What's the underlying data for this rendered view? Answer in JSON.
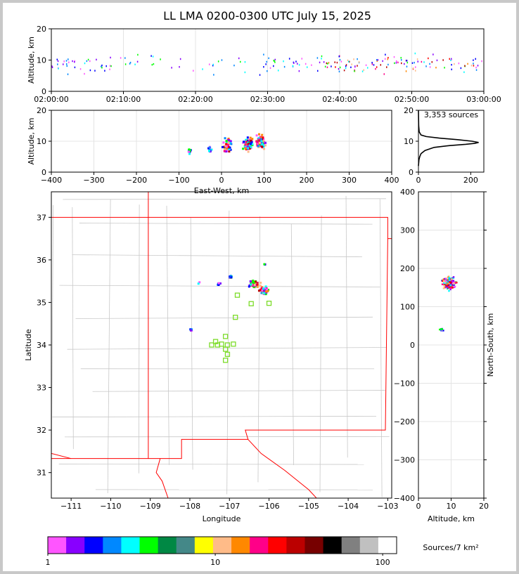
{
  "title": "LL LMA 0200-0300 UTC July 15, 2025",
  "colors": {
    "background": "#ffffff",
    "frame_border": "#c8c8c8",
    "state_border": "#ff0000",
    "county_border": "#c8c8c8",
    "station_marker": "#7ddc2a",
    "histogram_line": "#000000"
  },
  "chart_data": [
    {
      "id": "time-altitude",
      "type": "scatter",
      "xlabel": "",
      "ylabel": "Altitude, km",
      "xlim": [
        "02:00:00",
        "03:00:00"
      ],
      "ylim": [
        0,
        20
      ],
      "x_ticks": [
        "02:00:00",
        "02:10:00",
        "02:20:00",
        "02:30:00",
        "02:40:00",
        "02:50:00",
        "03:00:00"
      ],
      "y_ticks": [
        0,
        10,
        20
      ],
      "grid": true
    },
    {
      "id": "eastwest-altitude",
      "type": "scatter",
      "xlabel": "East-West, km",
      "ylabel": "Altitude, km",
      "xlim": [
        -400,
        400
      ],
      "ylim": [
        0,
        20
      ],
      "x_ticks": [
        -400,
        -300,
        -200,
        -100,
        0,
        100,
        200,
        300,
        400
      ],
      "y_ticks": [
        0,
        10,
        20
      ],
      "grid": true,
      "clusters": [
        {
          "x": -78,
          "y": 7,
          "count": 14
        },
        {
          "x": -30,
          "y": 7.5,
          "count": 12
        },
        {
          "x": 12,
          "y": 9,
          "count": 60
        },
        {
          "x": 60,
          "y": 9.5,
          "count": 90
        },
        {
          "x": 90,
          "y": 10,
          "count": 90
        }
      ]
    },
    {
      "id": "altitude-histogram",
      "type": "line",
      "annotation": "3,353 sources",
      "xlim": [
        0,
        250
      ],
      "ylim": [
        0,
        20
      ],
      "x_ticks": [
        0,
        200
      ],
      "y_ticks": [
        0,
        10,
        20
      ],
      "x": [
        0,
        2,
        5,
        10,
        25,
        60,
        120,
        180,
        215,
        230,
        205,
        150,
        80,
        30,
        10,
        3,
        1,
        0
      ],
      "y": [
        2,
        4,
        5,
        6,
        7,
        8,
        8.6,
        9,
        9.3,
        9.6,
        10,
        10.5,
        11,
        11.5,
        12,
        13,
        15,
        20
      ]
    },
    {
      "id": "plan-view",
      "type": "scatter",
      "xlabel": "Longitude",
      "ylabel": "Latitude",
      "xlim": [
        -111.5,
        -102.9
      ],
      "ylim": [
        30.4,
        37.6
      ],
      "x_ticks": [
        -111,
        -110,
        -109,
        -108,
        -107,
        -106,
        -105,
        -104,
        -103
      ],
      "y_ticks": [
        31,
        32,
        33,
        34,
        35,
        36,
        37
      ],
      "stations": [
        [
          -106.8,
          35.17
        ],
        [
          -106.45,
          34.97
        ],
        [
          -106.0,
          34.98
        ],
        [
          -106.85,
          34.65
        ],
        [
          -107.1,
          34.2
        ],
        [
          -107.35,
          34.08
        ],
        [
          -107.45,
          34.0
        ],
        [
          -107.3,
          34.0
        ],
        [
          -107.2,
          34.02
        ],
        [
          -107.05,
          34.0
        ],
        [
          -106.9,
          34.02
        ],
        [
          -107.1,
          33.9
        ],
        [
          -107.05,
          33.78
        ],
        [
          -107.1,
          33.64
        ]
      ],
      "clusters": [
        {
          "lon": -106.4,
          "lat": 35.45,
          "count": 90
        },
        {
          "lon": -106.15,
          "lat": 35.3,
          "count": 60
        },
        {
          "lon": -107.0,
          "lat": 35.62,
          "count": 30
        },
        {
          "lon": -107.3,
          "lat": 35.45,
          "count": 10
        },
        {
          "lon": -106.15,
          "lat": 35.92,
          "count": 3
        },
        {
          "lon": -107.8,
          "lat": 35.48,
          "count": 2
        },
        {
          "lon": -108.0,
          "lat": 34.38,
          "count": 8
        }
      ]
    },
    {
      "id": "altitude-northsouth",
      "type": "scatter",
      "xlabel": "Altitude, km",
      "ylabel": "North-South, km",
      "xlim": [
        0,
        20
      ],
      "ylim": [
        -400,
        400
      ],
      "x_ticks": [
        0,
        10,
        20
      ],
      "y_ticks": [
        -400,
        -300,
        -200,
        -100,
        0,
        100,
        200,
        300,
        400
      ],
      "clusters": [
        {
          "x": 9,
          "y": 165,
          "count": 140
        },
        {
          "x": 7,
          "y": 42,
          "count": 10
        }
      ]
    }
  ],
  "colorbar": {
    "label": "Sources/7 km²",
    "tick_labels": [
      "1",
      "10",
      "100"
    ],
    "colors": [
      "#ff55ff",
      "#8800ff",
      "#0000ff",
      "#0088ff",
      "#00ffff",
      "#00ff00",
      "#008844",
      "#448888",
      "#ffff00",
      "#ffbb88",
      "#ff8800",
      "#ff0088",
      "#ff0000",
      "#bb0000",
      "#770000",
      "#000000",
      "#808080",
      "#c0c0c0",
      "#ffffff"
    ]
  }
}
